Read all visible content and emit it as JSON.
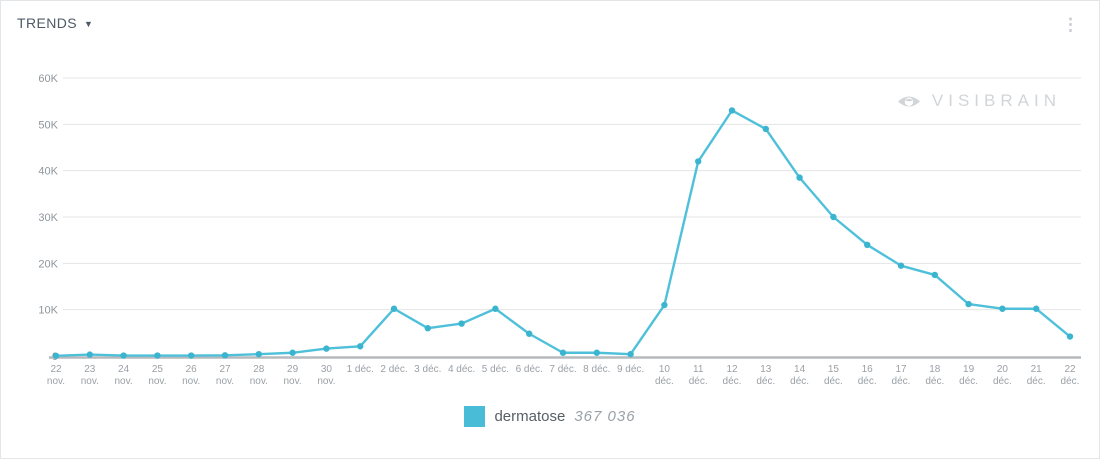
{
  "header": {
    "title": "TRENDS",
    "caret": "▼"
  },
  "kebab_icon": "⋮",
  "watermark": {
    "text": "VISIBRAIN"
  },
  "legend": {
    "label": "dermatose",
    "count": "367 036",
    "color": "#49bcd8"
  },
  "chart_data": {
    "type": "line",
    "title": "TRENDS",
    "categories": [
      "22 nov.",
      "23 nov.",
      "24 nov.",
      "25 nov.",
      "26 nov.",
      "27 nov.",
      "28 nov.",
      "29 nov.",
      "30 nov.",
      "1 déc.",
      "2 déc.",
      "3 déc.",
      "4 déc.",
      "5 déc.",
      "6 déc.",
      "7 déc.",
      "8 déc.",
      "9 déc.",
      "10 déc.",
      "11 déc.",
      "12 déc.",
      "13 déc.",
      "14 déc.",
      "15 déc.",
      "16 déc.",
      "17 déc.",
      "18 déc.",
      "19 déc.",
      "20 déc.",
      "21 déc.",
      "22 déc."
    ],
    "series": [
      {
        "name": "dermatose",
        "total": 367036,
        "values": [
          50,
          300,
          100,
          100,
          100,
          150,
          400,
          700,
          1600,
          2100,
          10200,
          6000,
          7000,
          10200,
          4800,
          700,
          700,
          400,
          11000,
          42000,
          53000,
          49000,
          38500,
          30000,
          24000,
          19500,
          17500,
          11200,
          10200,
          10200,
          4200
        ]
      }
    ],
    "xlabel": "",
    "ylabel": "",
    "ylim": [
      0,
      60000
    ],
    "y_ticks": [
      {
        "label": "60K",
        "value": 60000
      },
      {
        "label": "50K",
        "value": 50000
      },
      {
        "label": "40K",
        "value": 40000
      },
      {
        "label": "30K",
        "value": 30000
      },
      {
        "label": "20K",
        "value": 20000
      },
      {
        "label": "10K",
        "value": 10000
      },
      {
        "label": "0",
        "value": 0
      }
    ],
    "grid": true,
    "legend_position": "bottom",
    "colors": {
      "line": "#4fc0d9",
      "marker": "#3bb4cf",
      "grid": "#e4e4e4",
      "axis": "#b6babd",
      "tick_text": "#9aa0a6",
      "y_text": "#8f969c"
    }
  }
}
